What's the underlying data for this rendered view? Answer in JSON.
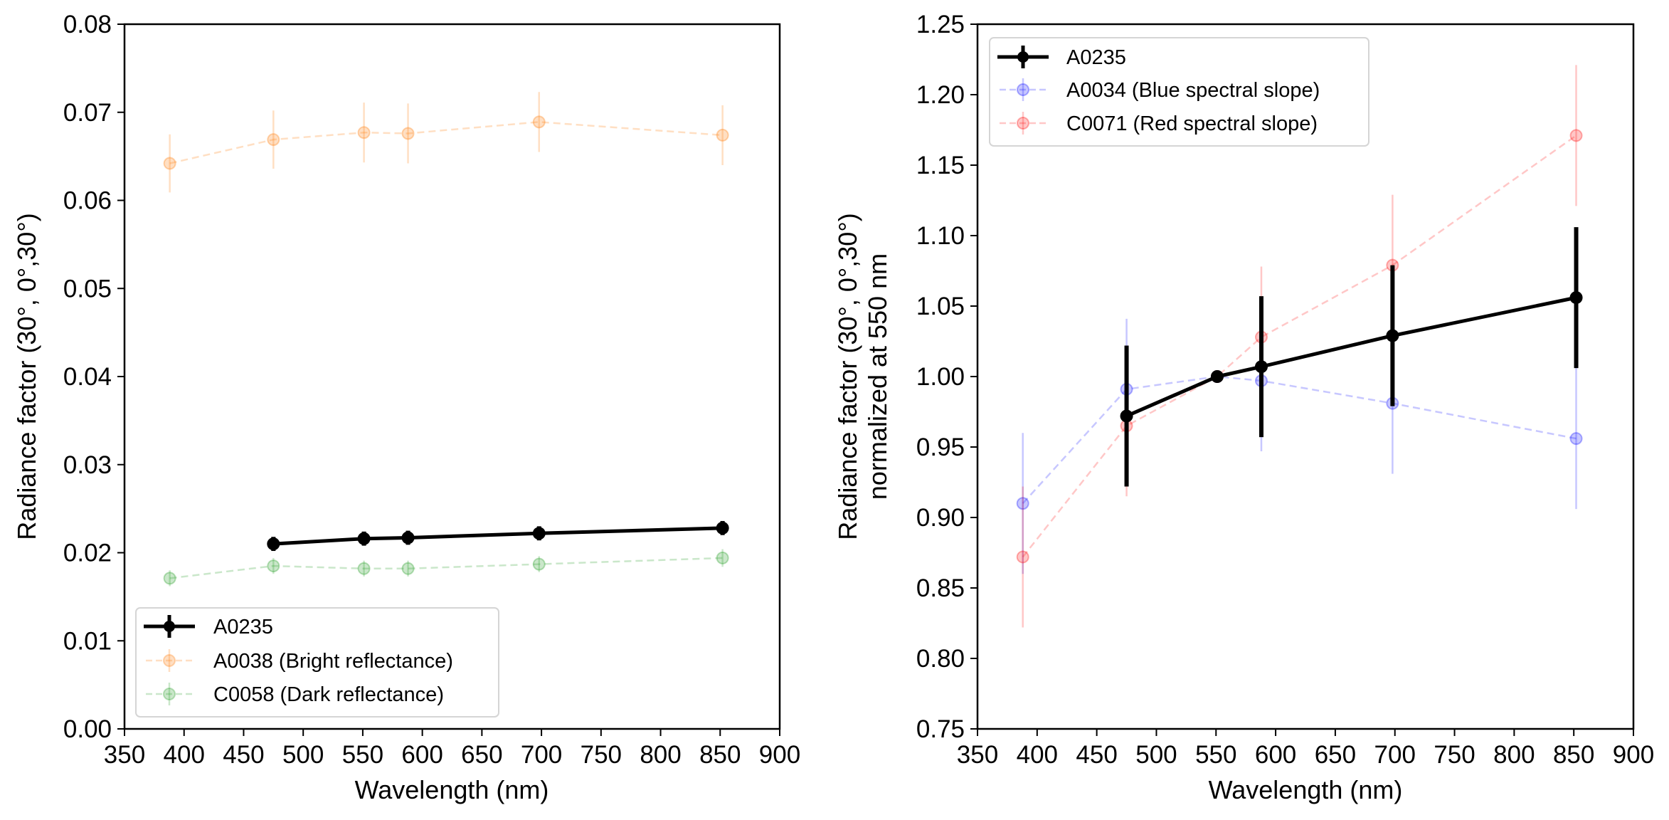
{
  "chart_data": [
    {
      "type": "line",
      "panel": "left",
      "title": "",
      "xlabel": "Wavelength (nm)",
      "ylabel": "Radiance factor (30°, 0°,30°)",
      "xlim": [
        350,
        900
      ],
      "ylim": [
        0.0,
        0.08
      ],
      "xticks": [
        350,
        400,
        450,
        500,
        550,
        600,
        650,
        700,
        750,
        800,
        850,
        900
      ],
      "xtick_labels": [
        "350",
        "400",
        "450",
        "500",
        "550",
        "600",
        "650",
        "700",
        "750",
        "800",
        "850",
        "900"
      ],
      "yticks": [
        0.0,
        0.01,
        0.02,
        0.03,
        0.04,
        0.05,
        0.06,
        0.07,
        0.08
      ],
      "ytick_labels": [
        "0.00",
        "0.01",
        "0.02",
        "0.03",
        "0.04",
        "0.05",
        "0.06",
        "0.07",
        "0.08"
      ],
      "grid": false,
      "legend_position": "lower-left",
      "series": [
        {
          "name": "A0038 (Bright reflectance)",
          "color": "#ff7f0e",
          "style": "dashed",
          "alpha": 0.25,
          "x": [
            388,
            475,
            551,
            588,
            698,
            852
          ],
          "y": [
            0.0642,
            0.0669,
            0.0677,
            0.0676,
            0.0689,
            0.0674
          ],
          "yerr": [
            0.0033,
            0.0033,
            0.0034,
            0.0034,
            0.0034,
            0.0034
          ]
        },
        {
          "name": "C0058 (Dark reflectance)",
          "color": "#2ca02c",
          "style": "dashed",
          "alpha": 0.25,
          "x": [
            388,
            475,
            551,
            588,
            698,
            852
          ],
          "y": [
            0.0171,
            0.0185,
            0.0182,
            0.0182,
            0.0187,
            0.0194
          ],
          "yerr": [
            0.0009,
            0.0009,
            0.0009,
            0.0009,
            0.0009,
            0.001
          ]
        },
        {
          "name": "A0235",
          "color": "#000000",
          "style": "solid",
          "alpha": 1.0,
          "x": [
            475,
            551,
            588,
            698,
            852
          ],
          "y": [
            0.021,
            0.0216,
            0.0217,
            0.0222,
            0.0228
          ],
          "yerr": [
            0.0008,
            0.0008,
            0.0008,
            0.0008,
            0.0008
          ]
        }
      ],
      "legend": [
        "A0235",
        "A0038 (Bright reflectance)",
        "C0058 (Dark reflectance)"
      ]
    },
    {
      "type": "line",
      "panel": "right",
      "title": "",
      "xlabel": "Wavelength (nm)",
      "ylabel": "Radiance factor (30°, 0°,30°)",
      "ylabel2": "normalized at 550 nm",
      "xlim": [
        350,
        900
      ],
      "ylim": [
        0.75,
        1.25
      ],
      "xticks": [
        350,
        400,
        450,
        500,
        550,
        600,
        650,
        700,
        750,
        800,
        850,
        900
      ],
      "xtick_labels": [
        "350",
        "400",
        "450",
        "500",
        "550",
        "600",
        "650",
        "700",
        "750",
        "800",
        "850",
        "900"
      ],
      "yticks": [
        0.75,
        0.8,
        0.85,
        0.9,
        0.95,
        1.0,
        1.05,
        1.1,
        1.15,
        1.2,
        1.25
      ],
      "ytick_labels": [
        "0.75",
        "0.80",
        "0.85",
        "0.90",
        "0.95",
        "1.00",
        "1.05",
        "1.10",
        "1.15",
        "1.20",
        "1.25"
      ],
      "grid": false,
      "legend_position": "upper-left",
      "series": [
        {
          "name": "A0034 (Blue spectral slope)",
          "color": "#0000ff",
          "style": "dashed",
          "alpha": 0.22,
          "x": [
            388,
            475,
            551,
            588,
            698,
            852
          ],
          "y": [
            0.91,
            0.991,
            1.0,
            0.997,
            0.981,
            0.956
          ],
          "yerr": [
            0.05,
            0.05,
            0.0,
            0.05,
            0.05,
            0.05
          ]
        },
        {
          "name": "C0071 (Red spectral slope)",
          "color": "#ff0000",
          "style": "dashed",
          "alpha": 0.22,
          "x": [
            388,
            475,
            551,
            588,
            698,
            852
          ],
          "y": [
            0.872,
            0.965,
            1.0,
            1.028,
            1.079,
            1.171
          ],
          "yerr": [
            0.05,
            0.05,
            0.0,
            0.05,
            0.05,
            0.05
          ]
        },
        {
          "name": "A0235",
          "color": "#000000",
          "style": "solid",
          "alpha": 1.0,
          "x": [
            475,
            551,
            588,
            698,
            852
          ],
          "y": [
            0.972,
            1.0,
            1.007,
            1.029,
            1.056
          ],
          "yerr": [
            0.05,
            0.0,
            0.05,
            0.05,
            0.05
          ]
        }
      ],
      "legend": [
        "A0235",
        "A0034 (Blue spectral slope)",
        "C0071 (Red spectral slope)"
      ]
    }
  ]
}
